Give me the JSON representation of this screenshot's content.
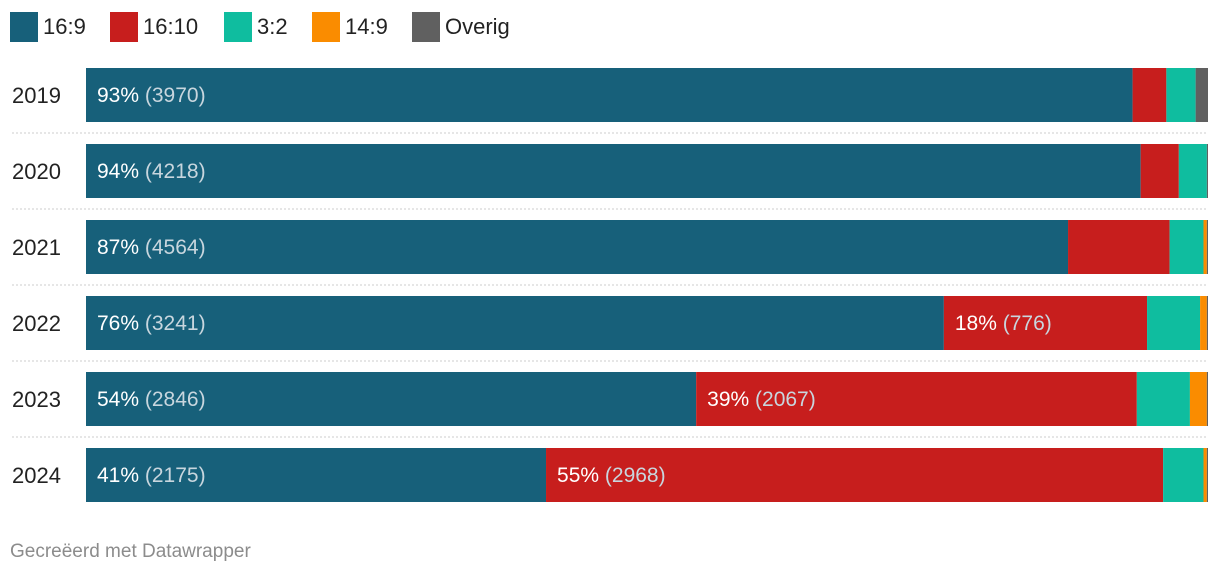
{
  "chart_data": {
    "type": "bar",
    "orientation": "horizontal",
    "stacked": true,
    "normalized": true,
    "categories": [
      "2019",
      "2020",
      "2021",
      "2022",
      "2023",
      "2024"
    ],
    "series": [
      {
        "name": "16:9",
        "color": "#17607a",
        "values": [
          93,
          94,
          87,
          76,
          54,
          41
        ]
      },
      {
        "name": "16:10",
        "color": "#c71e1d",
        "values": [
          3,
          3.4,
          9,
          18,
          39,
          55
        ]
      },
      {
        "name": "3:2",
        "color": "#0fbd9f",
        "values": [
          2.6,
          2.5,
          3,
          4.7,
          4.7,
          3.6
        ]
      },
      {
        "name": "14:9",
        "color": "#fa8c00",
        "values": [
          0,
          0,
          0.3,
          0.6,
          1.5,
          0.3
        ]
      },
      {
        "name": "Overig",
        "color": "#606060",
        "values": [
          1.1,
          0.1,
          0.1,
          0.1,
          0.1,
          0.1
        ]
      }
    ],
    "labels": [
      [
        {
          "pct": "93%",
          "count": "(3970)"
        },
        null,
        null,
        null,
        null
      ],
      [
        {
          "pct": "94%",
          "count": "(4218)"
        },
        null,
        null,
        null,
        null
      ],
      [
        {
          "pct": "87%",
          "count": "(4564)"
        },
        null,
        null,
        null,
        null
      ],
      [
        {
          "pct": "76%",
          "count": "(3241)"
        },
        {
          "pct": "18%",
          "count": "(776)"
        },
        null,
        null,
        null
      ],
      [
        {
          "pct": "54%",
          "count": "(2846)"
        },
        {
          "pct": "39%",
          "count": "(2067)"
        },
        null,
        null,
        null
      ],
      [
        {
          "pct": "41%",
          "count": "(2175)"
        },
        {
          "pct": "55%",
          "count": "(2968)"
        },
        null,
        null,
        null
      ]
    ],
    "legend_position": "top-left",
    "grid": false
  },
  "footer": {
    "credit": "Gecreëerd met Datawrapper"
  }
}
